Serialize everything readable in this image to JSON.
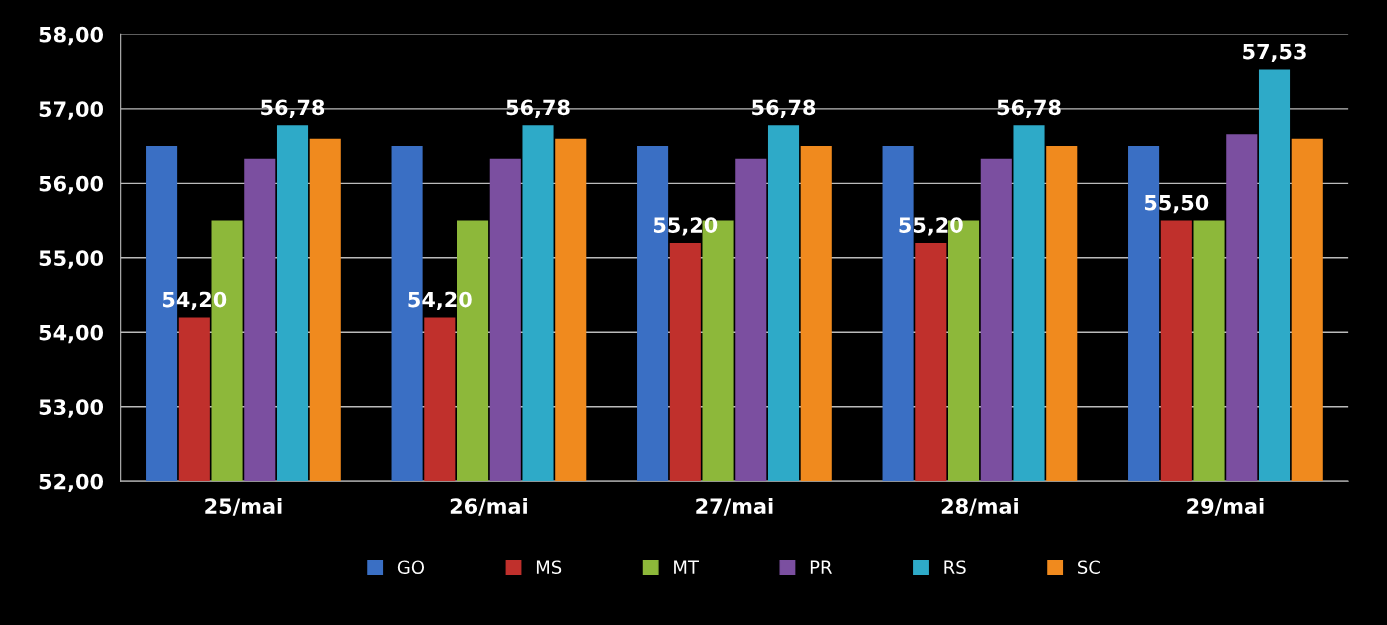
{
  "chart_data": {
    "type": "bar",
    "categories": [
      "25/mai",
      "26/mai",
      "27/mai",
      "28/mai",
      "29/mai"
    ],
    "series": [
      {
        "name": "GO",
        "color": "#3a6fc4",
        "values": [
          56.5,
          56.5,
          56.5,
          56.5,
          56.5
        ]
      },
      {
        "name": "MS",
        "color": "#c0302c",
        "values": [
          54.2,
          54.2,
          55.2,
          55.2,
          55.5
        ],
        "value_labels": [
          "54,20",
          "54,20",
          "55,20",
          "55,20",
          "55,50"
        ]
      },
      {
        "name": "MT",
        "color": "#8db83a",
        "values": [
          55.5,
          55.5,
          55.5,
          55.5,
          55.5
        ]
      },
      {
        "name": "PR",
        "color": "#7b4fa0",
        "values": [
          56.33,
          56.33,
          56.33,
          56.33,
          56.66
        ]
      },
      {
        "name": "RS",
        "color": "#2eaac8",
        "values": [
          56.78,
          56.78,
          56.78,
          56.78,
          57.53
        ],
        "value_labels": [
          "56,78",
          "56,78",
          "56,78",
          "56,78",
          "57,53"
        ]
      },
      {
        "name": "SC",
        "color": "#f08a1e",
        "values": [
          56.6,
          56.6,
          56.5,
          56.5,
          56.6
        ]
      }
    ],
    "ylim": [
      52,
      58
    ],
    "yticks": [
      {
        "value": 52,
        "label": "52,00"
      },
      {
        "value": 53,
        "label": "53,00"
      },
      {
        "value": 54,
        "label": "54,00"
      },
      {
        "value": 55,
        "label": "55,00"
      },
      {
        "value": 56,
        "label": "56,00"
      },
      {
        "value": 57,
        "label": "57,00"
      },
      {
        "value": 58,
        "label": "58,00"
      }
    ],
    "grid": "y",
    "legend": "bottom"
  }
}
